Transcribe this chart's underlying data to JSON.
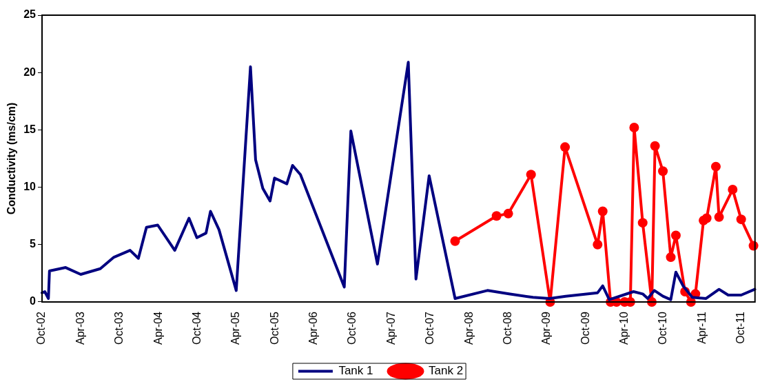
{
  "chart_data": {
    "type": "line",
    "ylabel": "Conductivity (ms/cm)",
    "xlim": [
      "2002-10-01",
      "2011-12-05"
    ],
    "ylim": [
      0,
      25
    ],
    "yticks": [
      0,
      5,
      10,
      15,
      20,
      25
    ],
    "xticks": [
      {
        "value": "2002-10-01",
        "label": "Oct-02"
      },
      {
        "value": "2003-04-01",
        "label": "Apr-03"
      },
      {
        "value": "2003-10-01",
        "label": "Oct-03"
      },
      {
        "value": "2004-04-01",
        "label": "Apr-04"
      },
      {
        "value": "2004-10-01",
        "label": "Oct-04"
      },
      {
        "value": "2005-04-01",
        "label": "Apr-05"
      },
      {
        "value": "2005-10-01",
        "label": "Oct-05"
      },
      {
        "value": "2006-04-01",
        "label": "Apr-06"
      },
      {
        "value": "2006-10-01",
        "label": "Oct-06"
      },
      {
        "value": "2007-04-01",
        "label": "Apr-07"
      },
      {
        "value": "2007-10-01",
        "label": "Oct-07"
      },
      {
        "value": "2008-04-01",
        "label": "Apr-08"
      },
      {
        "value": "2008-10-01",
        "label": "Oct-08"
      },
      {
        "value": "2009-04-01",
        "label": "Apr-09"
      },
      {
        "value": "2009-10-01",
        "label": "Oct-09"
      },
      {
        "value": "2010-04-01",
        "label": "Apr-10"
      },
      {
        "value": "2010-10-01",
        "label": "Oct-10"
      },
      {
        "value": "2011-04-01",
        "label": "Apr-11"
      },
      {
        "value": "2011-10-01",
        "label": "Oct-11"
      }
    ],
    "grid": false,
    "legend": "bottom",
    "line_style": "solid",
    "series": [
      {
        "name": "Tank 1",
        "color": "#000080",
        "marker": "none",
        "x": [
          "2002-10-01",
          "2002-10-14",
          "2002-10-31",
          "2002-11-05",
          "2003-01-20",
          "2003-04-01",
          "2003-07-02",
          "2003-09-04",
          "2003-11-19",
          "2003-12-28",
          "2004-02-04",
          "2004-03-28",
          "2004-06-16",
          "2004-08-22",
          "2004-09-28",
          "2004-11-10",
          "2004-12-01",
          "2005-01-10",
          "2005-04-01",
          "2005-06-07",
          "2005-07-01",
          "2005-08-04",
          "2005-09-07",
          "2005-09-28",
          "2005-11-25",
          "2005-12-22",
          "2006-01-28",
          "2006-08-22",
          "2006-09-22",
          "2007-01-25",
          "2007-06-19",
          "2007-07-25",
          "2007-09-25",
          "2008-01-25",
          "2008-06-25",
          "2008-10-04",
          "2009-01-25",
          "2009-04-13",
          "2009-06-28",
          "2009-11-25",
          "2009-12-19",
          "2010-01-19",
          "2010-05-13",
          "2010-06-25",
          "2010-07-19",
          "2010-08-19",
          "2010-09-28",
          "2010-11-04",
          "2010-11-28",
          "2011-01-01",
          "2011-02-13",
          "2011-04-19",
          "2011-06-19",
          "2011-08-01",
          "2011-10-01",
          "2011-12-04"
        ],
        "values": [
          0.8,
          0.9,
          0.3,
          2.7,
          3.0,
          2.4,
          2.9,
          3.9,
          4.5,
          3.8,
          6.5,
          6.7,
          4.5,
          7.3,
          5.6,
          6.0,
          7.9,
          6.3,
          1.0,
          20.5,
          12.4,
          9.9,
          8.8,
          10.8,
          10.3,
          11.9,
          11.1,
          1.3,
          14.9,
          3.3,
          20.9,
          2.0,
          11.0,
          0.3,
          1.0,
          0.7,
          0.4,
          0.3,
          0.5,
          0.8,
          1.4,
          0.2,
          0.9,
          0.7,
          0.3,
          1.0,
          0.5,
          0.2,
          2.6,
          1.4,
          0.4,
          0.3,
          1.1,
          0.6,
          0.6,
          1.1
        ]
      },
      {
        "name": "Tank 2",
        "color": "#ff0000",
        "marker": "circle",
        "x": [
          "2008-01-25",
          "2008-08-07",
          "2008-10-01",
          "2009-01-16",
          "2009-04-16",
          "2009-06-25",
          "2009-11-25",
          "2009-12-19",
          "2010-01-25",
          "2010-02-22",
          "2010-04-01",
          "2010-04-28",
          "2010-05-16",
          "2010-06-25",
          "2010-08-07",
          "2010-08-22",
          "2010-09-28",
          "2010-11-04",
          "2010-11-28",
          "2011-01-10",
          "2011-02-07",
          "2011-02-28",
          "2011-04-07",
          "2011-04-22",
          "2011-06-04",
          "2011-06-19",
          "2011-08-22",
          "2011-10-01",
          "2011-11-28"
        ],
        "values": [
          5.3,
          7.5,
          7.7,
          11.1,
          0,
          13.5,
          5.0,
          7.9,
          0,
          0,
          0,
          0,
          15.2,
          6.9,
          0,
          13.6,
          11.4,
          3.9,
          5.8,
          0.9,
          0,
          0.7,
          7.1,
          7.3,
          11.8,
          7.4,
          9.8,
          7.2,
          4.9
        ]
      }
    ]
  }
}
